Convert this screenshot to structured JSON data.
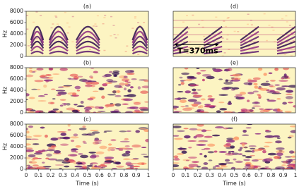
{
  "chart_data": [
    {
      "type": "spectrogram",
      "title": "(a)",
      "ylabel": "Hz",
      "ylim": [
        0,
        8000
      ],
      "yticks": [
        0,
        2000,
        4000,
        6000,
        8000
      ]
    },
    {
      "type": "spectrogram",
      "title": "(d)",
      "annotation": "T=370ms"
    },
    {
      "type": "spectrogram",
      "title": "(b)",
      "ylabel": "Hz",
      "ylim": [
        0,
        8000
      ],
      "yticks": [
        0,
        2000,
        4000,
        6000,
        8000
      ]
    },
    {
      "type": "spectrogram",
      "title": "(e)"
    },
    {
      "type": "spectrogram",
      "title": "(c)",
      "ylabel": "Hz",
      "ylim": [
        0,
        8000
      ],
      "yticks": [
        0,
        2000,
        4000,
        6000,
        8000
      ],
      "xlabel": "Time (s)",
      "xlim": [
        0,
        1
      ],
      "xticks": [
        0,
        0.1,
        0.2,
        0.3,
        0.4,
        0.5,
        0.6,
        0.7,
        0.8,
        0.9,
        1
      ]
    },
    {
      "type": "spectrogram",
      "title": "(f)",
      "xlabel": "Time (s)",
      "xlim": [
        0,
        1
      ],
      "xticks": [
        0,
        0.1,
        0.2,
        0.3,
        0.4,
        0.5,
        0.6,
        0.7,
        0.8,
        0.9,
        1
      ]
    }
  ]
}
